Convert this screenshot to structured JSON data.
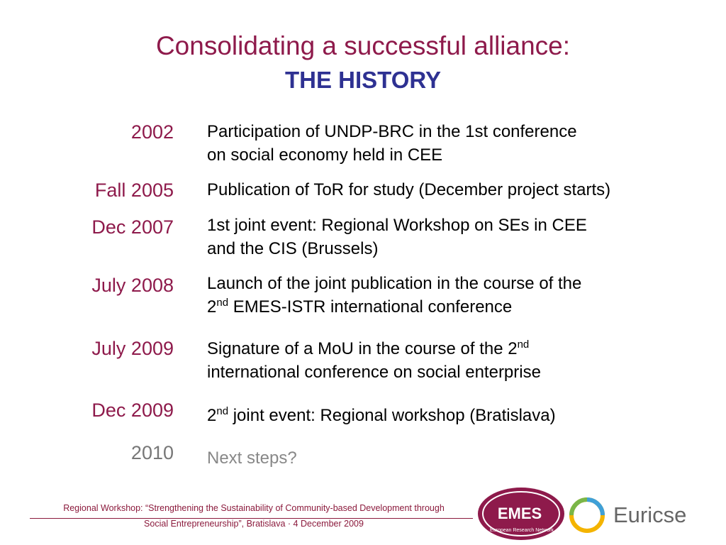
{
  "header": {
    "title": "Consolidating a successful alliance:",
    "subtitle": "THE HISTORY"
  },
  "rows": [
    {
      "date": "2002",
      "lines": [
        [
          "Participation of UNDP-BRC in the 1st conference"
        ],
        [
          "on social economy held in CEE"
        ]
      ]
    },
    {
      "date": "Fall 2005",
      "lines": [
        [
          "Publication of ToR for study (December project starts)"
        ]
      ]
    },
    {
      "date": "Dec 2007",
      "lines": [
        [
          "1st joint event: Regional Workshop on SEs in CEE"
        ],
        [
          "and the CIS (Brussels)"
        ]
      ]
    },
    {
      "date": "July 2008",
      "lines": [
        [
          "Launch of the joint publication in the course of the"
        ],
        [
          "2",
          {
            "sup": "nd"
          },
          " EMES-ISTR international conference"
        ]
      ]
    },
    {
      "date": "July 2009",
      "lines": [
        [
          "Signature of a MoU in the course of the 2",
          {
            "sup": "nd"
          }
        ],
        [
          "international conference on social enterprise"
        ]
      ]
    },
    {
      "date": "Dec 2009",
      "lines": [
        [
          "2",
          {
            "sup": "nd"
          },
          " joint event: Regional workshop (Bratislava)"
        ]
      ]
    },
    {
      "date": "2010",
      "muted": true,
      "lines": [
        [
          "Next steps?"
        ]
      ]
    }
  ],
  "footer": {
    "lines": [
      "Regional Workshop: “Strengthening the Sustainability of Community-based Development through",
      "Social Entrepreneurship”, Bratislava · 4 December 2009"
    ]
  },
  "logos": {
    "emes": "EMES",
    "emes_tagline": "European Research Network",
    "euricse": "Euricse"
  }
}
